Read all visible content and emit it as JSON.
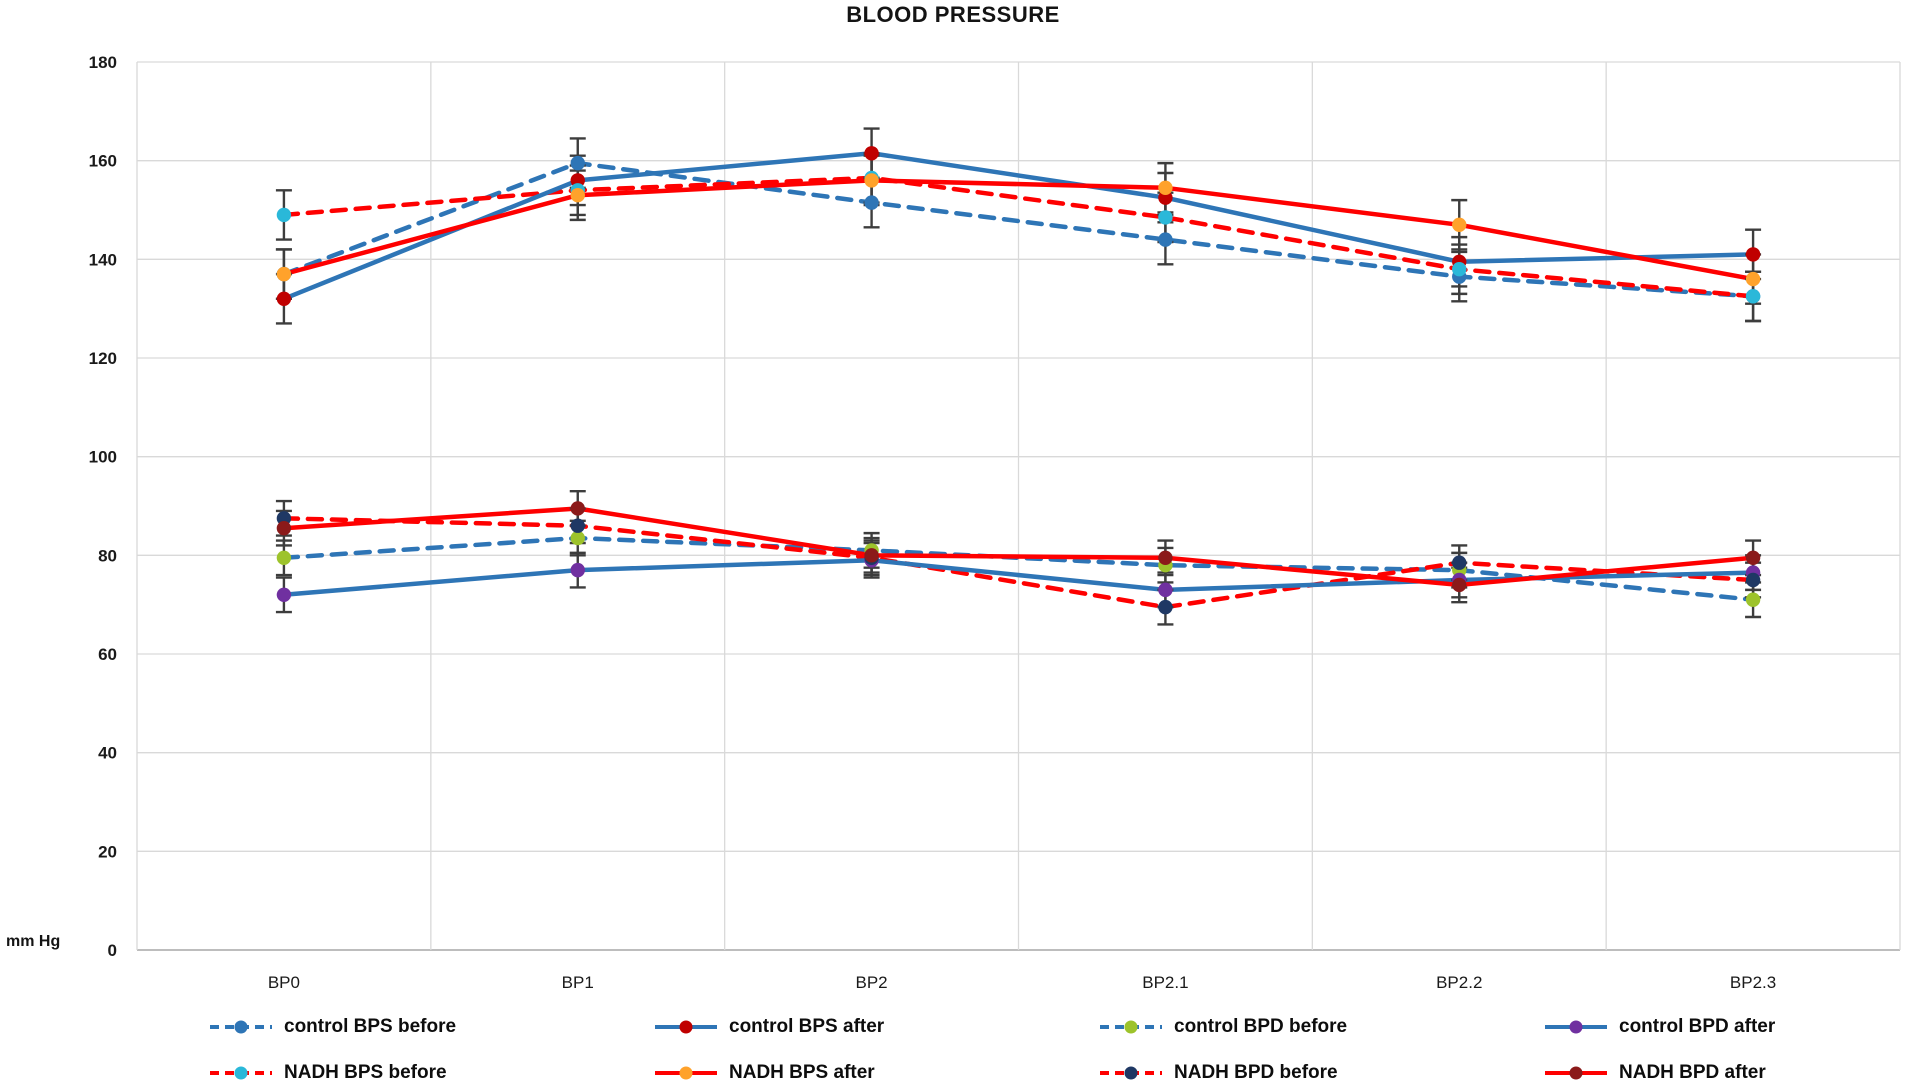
{
  "chart_data": {
    "type": "line",
    "title": "BLOOD PRESSURE",
    "ylabel": "mm Hg",
    "ylim": [
      0,
      180
    ],
    "ytick_step": 20,
    "grid": true,
    "legend_position": "bottom",
    "categories": [
      "BP0",
      "BP1",
      "BP2",
      "BP2.1",
      "BP2.2",
      "BP2.3"
    ],
    "series": [
      {
        "name": "control BPS before",
        "line_color": "#2e75b6",
        "dashed": true,
        "marker_color": "#2e75b6",
        "error": 5,
        "values": [
          137,
          159.5,
          151.5,
          144,
          136.5,
          132.5
        ]
      },
      {
        "name": "control BPS after",
        "line_color": "#2e75b6",
        "dashed": false,
        "marker_color": "#c00000",
        "error": 5,
        "values": [
          132,
          156,
          161.5,
          152.5,
          139.5,
          141
        ]
      },
      {
        "name": "control BPD before",
        "line_color": "#2e75b6",
        "dashed": true,
        "marker_color": "#9dc32b",
        "error": 3.5,
        "values": [
          79.5,
          83.5,
          81,
          78,
          77,
          71
        ]
      },
      {
        "name": "control BPD after",
        "line_color": "#2e75b6",
        "dashed": false,
        "marker_color": "#7030a0",
        "error": 3.5,
        "values": [
          72,
          77,
          79,
          73,
          75,
          76.5
        ]
      },
      {
        "name": "NADH BPS before",
        "line_color": "#fe0000",
        "dashed": true,
        "marker_color": "#2ab8d9",
        "error": 5,
        "values": [
          149,
          154,
          156.5,
          148.5,
          138,
          132.5
        ]
      },
      {
        "name": "NADH BPS after",
        "line_color": "#fe0000",
        "dashed": false,
        "marker_color": "#ffa22b",
        "error": 5,
        "values": [
          137,
          153,
          156,
          154.5,
          147,
          136
        ]
      },
      {
        "name": "NADH BPD before",
        "line_color": "#fe0000",
        "dashed": true,
        "marker_color": "#1f3864",
        "error": 3.5,
        "values": [
          87.5,
          86,
          79.5,
          69.5,
          78.5,
          75
        ]
      },
      {
        "name": "NADH BPD after",
        "line_color": "#fe0000",
        "dashed": false,
        "marker_color": "#8b1a1a",
        "error": 3.5,
        "values": [
          85.5,
          89.5,
          80,
          79.5,
          74,
          79.5
        ]
      }
    ],
    "colors": {
      "control_line": "#2e75b6",
      "nadh_line": "#fe0000",
      "gridline": "#d9d9d9",
      "error_bar": "#3d3d3d",
      "text": "#1a1a1a"
    }
  }
}
